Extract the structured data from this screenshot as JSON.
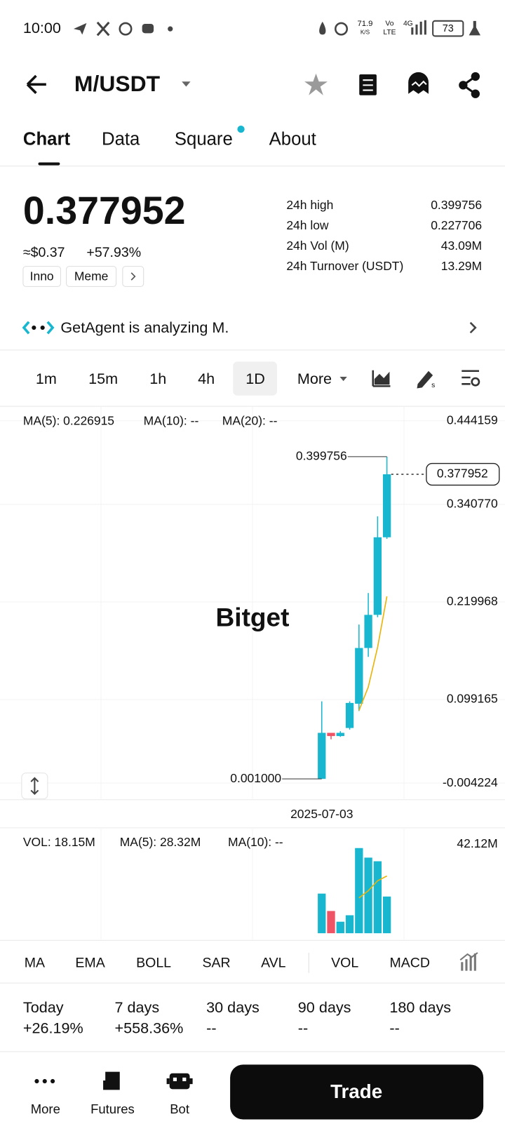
{
  "status": {
    "time": "10:00",
    "speed": "71.9",
    "speed_unit": "K/S",
    "net1": "Vo",
    "net2": "LTE",
    "net3": "4G",
    "battery": "73"
  },
  "header": {
    "pair": "M/USDT"
  },
  "tabs": [
    "Chart",
    "Data",
    "Square",
    "About"
  ],
  "price": {
    "last": "0.377952",
    "usd": "≈$0.37",
    "change": "+57.93%",
    "tags": [
      "Inno",
      "Meme"
    ]
  },
  "stats": [
    [
      "24h high",
      "0.399756"
    ],
    [
      "24h low",
      "0.227706"
    ],
    [
      "24h Vol (M)",
      "43.09M"
    ],
    [
      "24h Turnover (USDT)",
      "13.29M"
    ]
  ],
  "agent": "GetAgent is analyzing M.",
  "intervals": [
    "1m",
    "15m",
    "1h",
    "4h",
    "1D",
    "More"
  ],
  "watermark": "Bitget",
  "indicators": [
    "MA",
    "EMA",
    "BOLL",
    "SAR",
    "AVL",
    "VOL",
    "MACD"
  ],
  "performance": [
    [
      "Today",
      "+26.19%"
    ],
    [
      "7 days",
      "+558.36%"
    ],
    [
      "30 days",
      "--"
    ],
    [
      "90 days",
      "--"
    ],
    [
      "180 days",
      "--"
    ]
  ],
  "nav": [
    "More",
    "Futures",
    "Bot"
  ],
  "trade": "Trade",
  "chart_data": {
    "type": "candlestick",
    "categories": [
      "2025-07-03",
      null,
      null,
      null,
      null,
      null,
      null,
      null
    ],
    "open": [
      0.001,
      0.058,
      0.054,
      0.064,
      0.094,
      0.163,
      0.204,
      0.3
    ],
    "high": [
      0.097,
      0.058,
      0.06,
      0.097,
      0.192,
      0.231,
      0.326,
      0.399756
    ],
    "low": [
      0.001,
      0.05,
      0.053,
      0.062,
      0.085,
      0.152,
      0.201,
      0.298
    ],
    "close": [
      0.058,
      0.054,
      0.058,
      0.095,
      0.163,
      0.204,
      0.3,
      0.377952
    ],
    "low_label": "0.001000",
    "up_color": "#18b7cf",
    "down_color": "#ef5366",
    "ma_legend": [
      {
        "text": "MA(5): 0.226915",
        "color": "#e8b40c"
      },
      {
        "text": "MA(10): --",
        "color": "#d63cae"
      },
      {
        "text": "MA(20): --",
        "color": "#8a2bc8"
      }
    ],
    "ma5": {
      "color": "#e8b40c",
      "values": [
        null,
        null,
        null,
        null,
        0.0856,
        0.1147,
        0.1639,
        0.226915
      ]
    },
    "ylim": [
      -0.004224,
      0.444159
    ],
    "yticks": [
      0.444159,
      {
        "value": 0.34077,
        "label": "0.340770"
      },
      0.219968,
      0.099165,
      -0.004224
    ],
    "grid": true,
    "volume": {
      "legend": [
        {
          "text": "VOL: 18.15M",
          "color": "#777777"
        },
        {
          "text": "MA(5): 28.32M",
          "color": "#e8b40c"
        },
        {
          "text": "MA(10): --",
          "color": "#d63cae"
        }
      ],
      "values": [
        19.6,
        11.0,
        5.7,
        8.9,
        42.12,
        37.4,
        35.6,
        18.15
      ],
      "ma5": [
        null,
        null,
        null,
        null,
        17.46,
        21.02,
        25.94,
        28.32
      ],
      "ylim": [
        0,
        42.12
      ],
      "yticks": [
        {
          "value": 42.12,
          "label": "42.12M"
        }
      ]
    }
  }
}
